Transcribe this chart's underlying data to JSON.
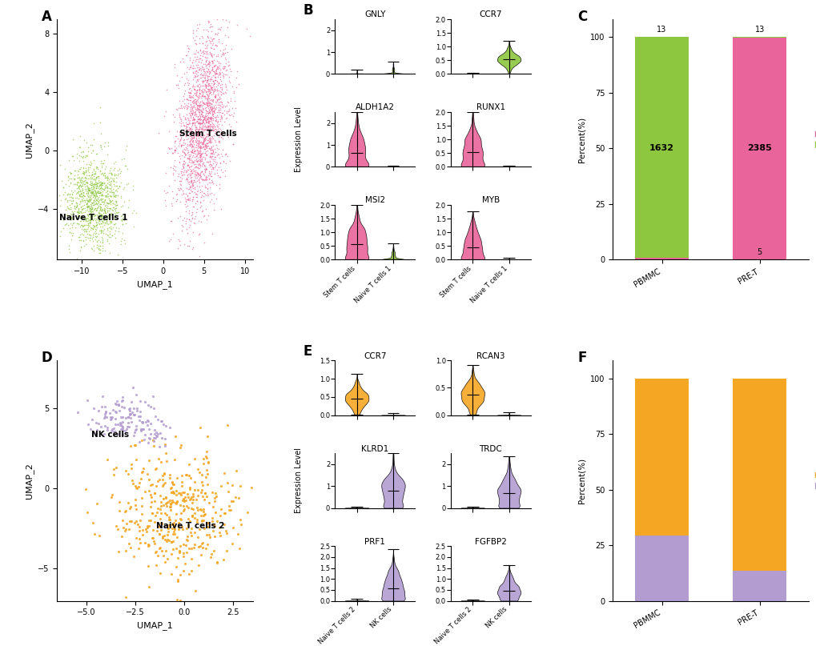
{
  "panel_A": {
    "xlabel": "UMAP_1",
    "ylabel": "UMAP_2",
    "xlim": [
      -13,
      11
    ],
    "ylim": [
      -7.5,
      9
    ],
    "clusters": [
      {
        "name": "Stem T cells",
        "color": "#E8649A",
        "n": 2000
      },
      {
        "name": "Naive T cells 1",
        "color": "#8DC63F",
        "n": 1200
      }
    ],
    "xticks": [
      -10,
      -5,
      0,
      5,
      10
    ],
    "yticks": [
      -4,
      0,
      4,
      8
    ]
  },
  "panel_B": {
    "genes": [
      "GNLY",
      "CCR7",
      "ALDH1A2",
      "RUNX1",
      "MSI2",
      "MYB"
    ],
    "categories": [
      "Stem T cells",
      "Naive T cells 1"
    ],
    "colors": [
      "#E8649A",
      "#8DC63F"
    ],
    "ylims": [
      [
        0,
        2.5
      ],
      [
        0,
        2.0
      ],
      [
        0,
        2.5
      ],
      [
        0,
        2.0
      ],
      [
        0,
        2.0
      ],
      [
        0,
        2.0
      ]
    ],
    "yticks": [
      [
        0,
        1,
        2
      ],
      [
        0.0,
        0.5,
        1.0,
        1.5,
        2.0
      ],
      [
        0,
        1,
        2
      ],
      [
        0.0,
        0.5,
        1.0,
        1.5,
        2.0
      ],
      [
        0.0,
        0.5,
        1.0,
        1.5,
        2.0
      ],
      [
        0.0,
        0.5,
        1.0,
        1.5,
        2.0
      ]
    ]
  },
  "panel_C": {
    "ylabel": "Percent(%)",
    "categories": [
      "PBMMC",
      "PRE-T"
    ],
    "stem_pct_pbmmc": 0.79,
    "naive1_pct_pbmmc": 99.21,
    "stem_pct_pret": 99.79,
    "naive1_pct_pret": 0.21,
    "stem_color": "#E8649A",
    "naive1_color": "#8DC63F",
    "yticks": [
      0,
      25,
      50,
      75,
      100
    ]
  },
  "panel_D": {
    "xlabel": "UMAP_1",
    "ylabel": "UMAP_2",
    "xlim": [
      -6.5,
      3.5
    ],
    "ylim": [
      -7,
      8
    ],
    "clusters": [
      {
        "name": "NK cells",
        "color": "#B39CD0",
        "n": 120
      },
      {
        "name": "Naive T cells 2",
        "color": "#F5A623",
        "n": 450
      }
    ],
    "xticks": [
      -5.0,
      -2.5,
      0.0,
      2.5
    ],
    "yticks": [
      -5,
      0,
      5
    ]
  },
  "panel_E": {
    "genes": [
      "CCR7",
      "RCAN3",
      "KLRD1",
      "TRDC",
      "PRF1",
      "FGFBP2"
    ],
    "categories": [
      "Naive T cells 2",
      "NK cells"
    ],
    "colors": [
      "#F5A623",
      "#B39CD0"
    ],
    "ylims": [
      [
        0,
        1.5
      ],
      [
        0,
        1.0
      ],
      [
        0,
        2.5
      ],
      [
        0,
        2.5
      ],
      [
        0,
        2.5
      ],
      [
        0,
        2.5
      ]
    ],
    "yticks": [
      [
        0.0,
        0.5,
        1.0,
        1.5
      ],
      [
        0.0,
        0.5,
        1.0
      ],
      [
        0,
        1,
        2
      ],
      [
        0,
        1,
        2
      ],
      [
        0.0,
        0.5,
        1.0,
        1.5,
        2.0,
        2.5
      ],
      [
        0.0,
        0.5,
        1.0,
        1.5,
        2.0,
        2.5
      ]
    ]
  },
  "panel_F": {
    "ylabel": "Percent(%)",
    "categories": [
      "PBMMC",
      "PRE-T"
    ],
    "nk_pct_pbmmc": 29.5,
    "naive2_pct_pbmmc": 70.5,
    "nk_pct_pret": 13.5,
    "naive2_pct_pret": 86.5,
    "nk_color": "#B39CD0",
    "naive2_color": "#F5A623",
    "yticks": [
      0,
      25,
      50,
      75,
      100
    ]
  }
}
